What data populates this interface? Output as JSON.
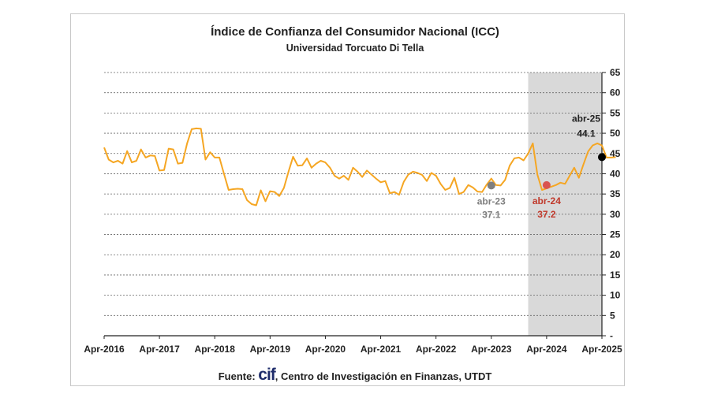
{
  "source": {
    "prefix": "Fuente:",
    "logo": "cif",
    "text": ", Centro de Investigación en Finanzas, UTDT"
  },
  "chart_data": {
    "type": "line",
    "title": "Índice de Confianza del Consumidor Nacional (ICC)",
    "subtitle": "Universidad Torcuato Di Tella",
    "xlabel": "",
    "ylabel": "",
    "ylim": [
      0,
      65
    ],
    "y_ticks": [
      "-",
      "5",
      "10",
      "15",
      "20",
      "25",
      "30",
      "35",
      "40",
      "45",
      "50",
      "55",
      "60",
      "65"
    ],
    "y_axis_position": "right",
    "x_ticks": [
      "Apr-2016",
      "Apr-2017",
      "Apr-2018",
      "Apr-2019",
      "Apr-2020",
      "Apr-2021",
      "Apr-2022",
      "Apr-2023",
      "Apr-2024",
      "Apr-2025"
    ],
    "grid": true,
    "shaded_region": {
      "from": "Dec-2023",
      "to": "Apr-2025",
      "color": "#d9d9d9"
    },
    "line_color": "#f5a623",
    "x_start": "Apr-2016",
    "series": [
      {
        "name": "",
        "values": [
          46.5,
          43.5,
          42.8,
          43.2,
          42.5,
          45.6,
          42.8,
          43.2,
          46.0,
          44.0,
          44.5,
          44.4,
          40.8,
          40.9,
          46.2,
          46.0,
          42.5,
          42.7,
          47.5,
          51.0,
          51.2,
          51.1,
          43.5,
          45.3,
          44.0,
          44.0,
          40.0,
          36.0,
          36.2,
          36.3,
          36.2,
          33.5,
          32.5,
          32.2,
          35.9,
          33.2,
          35.7,
          35.5,
          34.5,
          36.5,
          40.5,
          44.2,
          42.0,
          42.1,
          43.8,
          41.5,
          42.5,
          43.2,
          42.8,
          41.5,
          39.5,
          38.8,
          39.5,
          38.5,
          41.5,
          40.5,
          39.2,
          40.8,
          39.8,
          38.8,
          37.9,
          38.2,
          35.2,
          35.5,
          34.8,
          38.0,
          39.8,
          40.5,
          40.2,
          39.7,
          38.2,
          40.2,
          39.5,
          37.5,
          36.0,
          36.5,
          39.0,
          35.0,
          35.5,
          37.2,
          36.6,
          35.6,
          35.5,
          37.3,
          38.8,
          37.2,
          37.1,
          38.5,
          42.0,
          43.8,
          44.0,
          43.3,
          45.0,
          47.5,
          39.8,
          36.0,
          36.4,
          36.8,
          37.2,
          37.8,
          37.5,
          39.5,
          41.5,
          39.0,
          42.3,
          45.5,
          47.0,
          47.5,
          47.0,
          44.0,
          44.0,
          44.1
        ]
      }
    ],
    "annotations": [
      {
        "label": "abr-23",
        "value": "37.1",
        "x": "Apr-2023",
        "y": 37.1,
        "color": "#7f7f7f"
      },
      {
        "label": "abr-24",
        "value": "37.2",
        "x": "Apr-2024",
        "y": 37.2,
        "color": "#c0392b"
      },
      {
        "label": "abr-25",
        "value": "44.1",
        "x": "Apr-2025",
        "y": 44.1,
        "color": "#222222"
      }
    ]
  }
}
